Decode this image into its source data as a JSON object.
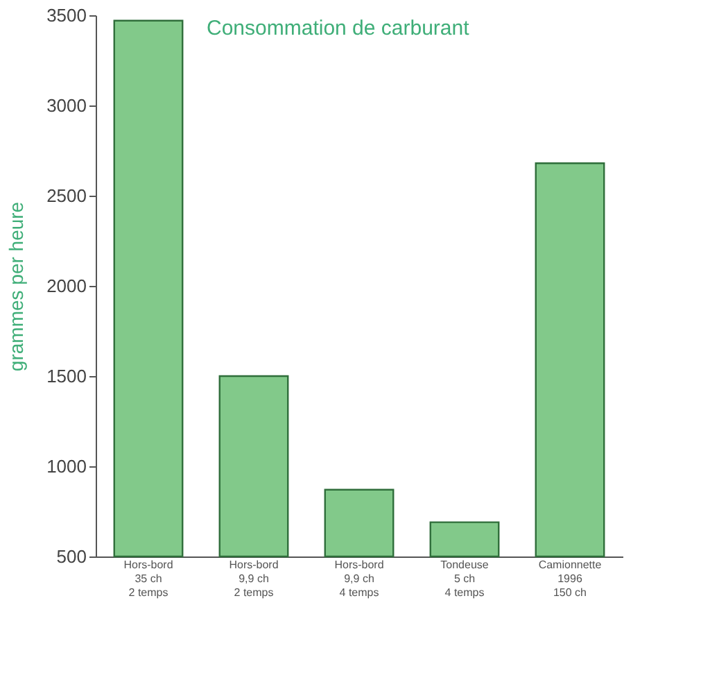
{
  "chart_data": {
    "type": "bar",
    "title": "Consommation de carburant",
    "ylabel": "grammes per heure",
    "categories": [
      "Hors-bord\n35 ch\n2 temps",
      "Hors-bord\n9,9 ch\n2 temps",
      "Hors-bord\n9,9 ch\n4 temps",
      "Tondeuse\n5 ch\n4 temps",
      "Camionnette\n1996\n150 ch"
    ],
    "values": [
      3470,
      1500,
      870,
      690,
      2680
    ],
    "color": "#82c98a",
    "ylim": [
      500,
      3500
    ],
    "yticks": [
      500,
      1000,
      1500,
      2000,
      2500,
      3000,
      3500
    ],
    "grid": false
  }
}
